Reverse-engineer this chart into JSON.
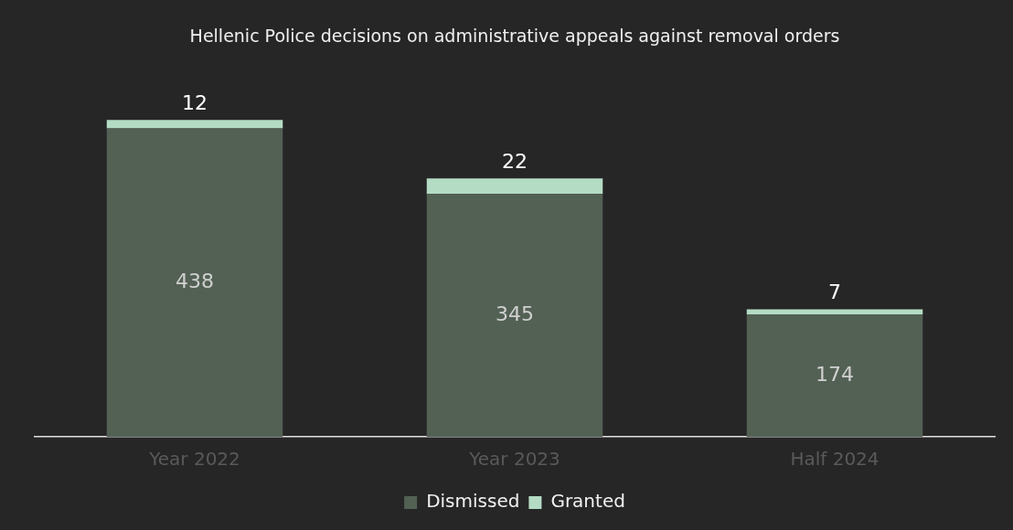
{
  "chart_data": {
    "type": "bar",
    "title": "Hellenic Police decisions on administrative appeals against removal orders",
    "categories": [
      "Year 2022",
      "Year 2023",
      "Half 2024"
    ],
    "stacked": true,
    "data_labels": true,
    "legend": "bottom",
    "series": [
      {
        "name": "Dismissed",
        "color": "#536155",
        "values": [
          438,
          345,
          174
        ]
      },
      {
        "name": "Granted",
        "color": "#b4dcc4",
        "values": [
          12,
          22,
          7
        ]
      }
    ]
  }
}
